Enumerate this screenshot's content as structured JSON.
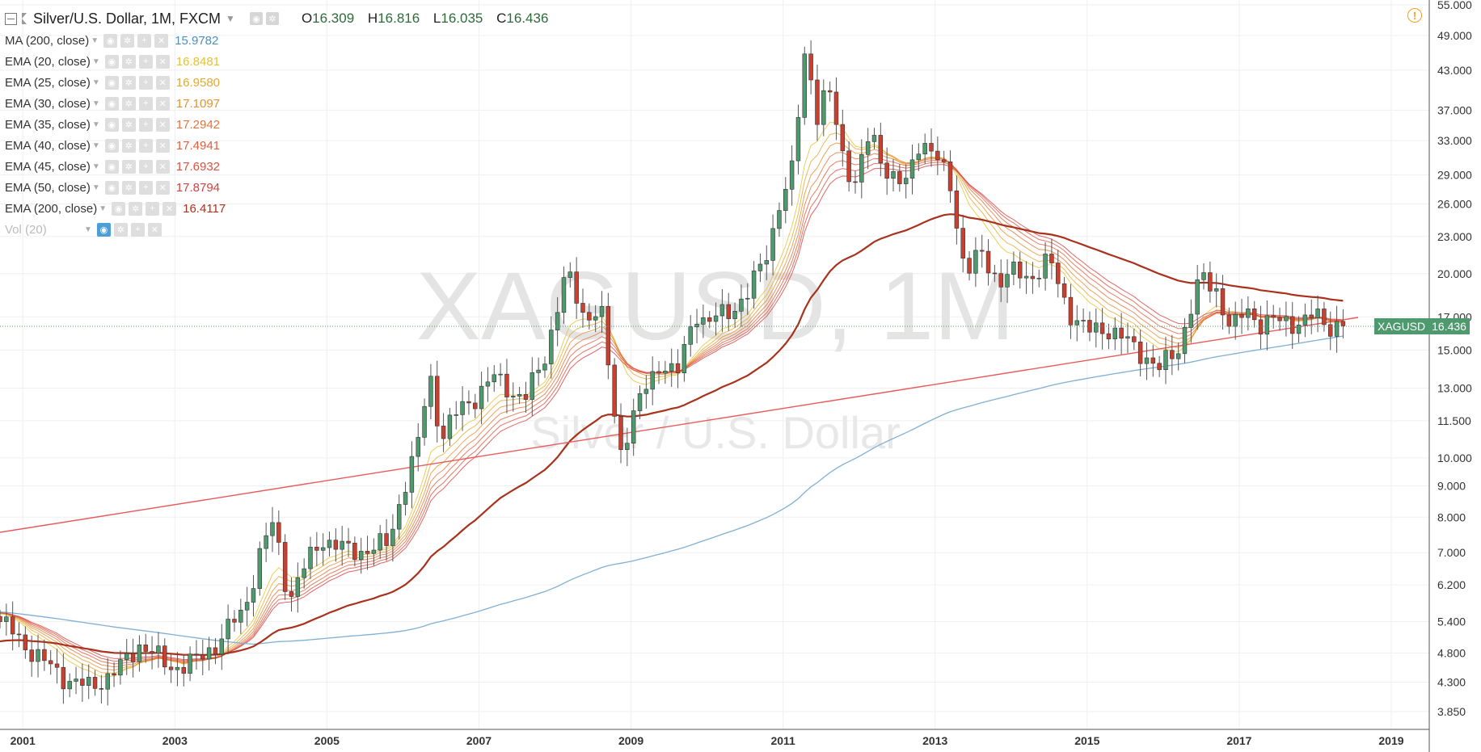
{
  "header": {
    "symbol": "Silver/U.S. Dollar, 1M, FXCM",
    "open_label": "O",
    "open": "16.309",
    "high_label": "H",
    "high": "16.816",
    "low_label": "L",
    "low": "16.035",
    "close_label": "C",
    "close": "16.436"
  },
  "indicators": [
    {
      "name": "MA (200, close)",
      "value": "15.9782",
      "color": "#4a8fc2"
    },
    {
      "name": "EMA (20, close)",
      "value": "16.8481",
      "color": "#e8c230"
    },
    {
      "name": "EMA (25, close)",
      "value": "16.9580",
      "color": "#e7a830"
    },
    {
      "name": "EMA (30, close)",
      "value": "17.1097",
      "color": "#e79030"
    },
    {
      "name": "EMA (35, close)",
      "value": "17.2942",
      "color": "#e5743a"
    },
    {
      "name": "EMA (40, close)",
      "value": "17.4941",
      "color": "#e0603e"
    },
    {
      "name": "EMA (45, close)",
      "value": "17.6932",
      "color": "#dc5040"
    },
    {
      "name": "EMA (50, close)",
      "value": "17.8794",
      "color": "#d64040"
    },
    {
      "name": "EMA (200, close)",
      "value": "16.4117",
      "color": "#b0301e"
    },
    {
      "name": "Vol (20)",
      "value": "",
      "color": "#bbbbbb"
    }
  ],
  "watermark": {
    "line1": "XAGUSD, 1M",
    "line2": "Silver / U.S. Dollar"
  },
  "last_price_label": {
    "symbol": "XAGUSD",
    "value": "16.436"
  },
  "colors": {
    "up": "#4e9a6e",
    "down": "#c8402f",
    "wick": "#555555",
    "ma200": "#7fb0d4",
    "ema200": "#a8321c",
    "trendline": "#e85a5a"
  },
  "chart_data": {
    "type": "candlestick",
    "title": "Silver/U.S. Dollar, 1M, FXCM",
    "y_scale": "log",
    "ylim": [
      3.6,
      56
    ],
    "xlim": [
      2000.7,
      2019.5
    ],
    "x_ticks": [
      "2001",
      "2003",
      "2005",
      "2007",
      "2009",
      "2011",
      "2013",
      "2015",
      "2017",
      "2019"
    ],
    "y_ticks": [
      "55.000",
      "49.000",
      "43.000",
      "37.000",
      "33.000",
      "29.000",
      "26.000",
      "23.000",
      "20.000",
      "17.000",
      "15.000",
      "13.000",
      "11.500",
      "10.000",
      "9.000",
      "8.000",
      "7.000",
      "6.200",
      "5.400",
      "4.800",
      "4.300",
      "3.850"
    ],
    "anchors": [
      [
        2000.7,
        5.4
      ],
      [
        2001.0,
        5.0
      ],
      [
        2001.3,
        4.6
      ],
      [
        2001.6,
        4.35
      ],
      [
        2001.85,
        4.2
      ],
      [
        2002.3,
        4.55
      ],
      [
        2002.55,
        5.0
      ],
      [
        2002.9,
        4.55
      ],
      [
        2003.3,
        4.65
      ],
      [
        2003.55,
        5.0
      ],
      [
        2003.9,
        5.6
      ],
      [
        2004.15,
        7.2
      ],
      [
        2004.3,
        7.8
      ],
      [
        2004.5,
        5.9
      ],
      [
        2004.7,
        6.6
      ],
      [
        2004.95,
        7.4
      ],
      [
        2005.3,
        7.0
      ],
      [
        2005.5,
        7.1
      ],
      [
        2005.8,
        7.2
      ],
      [
        2006.0,
        8.9
      ],
      [
        2006.2,
        10.5
      ],
      [
        2006.35,
        13.8
      ],
      [
        2006.5,
        10.8
      ],
      [
        2006.75,
        12.0
      ],
      [
        2007.0,
        12.8
      ],
      [
        2007.2,
        13.5
      ],
      [
        2007.4,
        13.0
      ],
      [
        2007.6,
        12.4
      ],
      [
        2007.85,
        14.5
      ],
      [
        2008.15,
        20.0
      ],
      [
        2008.4,
        17.0
      ],
      [
        2008.6,
        17.5
      ],
      [
        2008.85,
        10.2
      ],
      [
        2009.0,
        11.5
      ],
      [
        2009.2,
        13.0
      ],
      [
        2009.4,
        14.5
      ],
      [
        2009.6,
        13.5
      ],
      [
        2009.85,
        17.5
      ],
      [
        2010.0,
        16.5
      ],
      [
        2010.3,
        17.5
      ],
      [
        2010.55,
        18.5
      ],
      [
        2010.8,
        22.0
      ],
      [
        2010.95,
        26.0
      ],
      [
        2011.1,
        28.0
      ],
      [
        2011.3,
        48.0
      ],
      [
        2011.45,
        36.0
      ],
      [
        2011.6,
        40.0
      ],
      [
        2011.8,
        31.0
      ],
      [
        2011.95,
        28.0
      ],
      [
        2012.15,
        34.0
      ],
      [
        2012.4,
        29.0
      ],
      [
        2012.6,
        27.5
      ],
      [
        2012.8,
        33.5
      ],
      [
        2013.0,
        31.0
      ],
      [
        2013.2,
        28.0
      ],
      [
        2013.4,
        20.0
      ],
      [
        2013.6,
        21.5
      ],
      [
        2013.85,
        19.5
      ],
      [
        2014.0,
        20.0
      ],
      [
        2014.25,
        19.8
      ],
      [
        2014.5,
        21.0
      ],
      [
        2014.75,
        17.5
      ],
      [
        2015.0,
        16.0
      ],
      [
        2015.25,
        16.4
      ],
      [
        2015.5,
        15.5
      ],
      [
        2015.75,
        14.8
      ],
      [
        2015.95,
        13.9
      ],
      [
        2016.2,
        15.2
      ],
      [
        2016.5,
        19.7
      ],
      [
        2016.7,
        18.9
      ],
      [
        2016.9,
        16.0
      ],
      [
        2017.1,
        17.6
      ],
      [
        2017.3,
        16.5
      ],
      [
        2017.6,
        16.8
      ],
      [
        2017.85,
        16.6
      ],
      [
        2018.0,
        17.1
      ],
      [
        2018.2,
        16.5
      ],
      [
        2018.4,
        16.436
      ]
    ],
    "last_close": 16.436
  }
}
